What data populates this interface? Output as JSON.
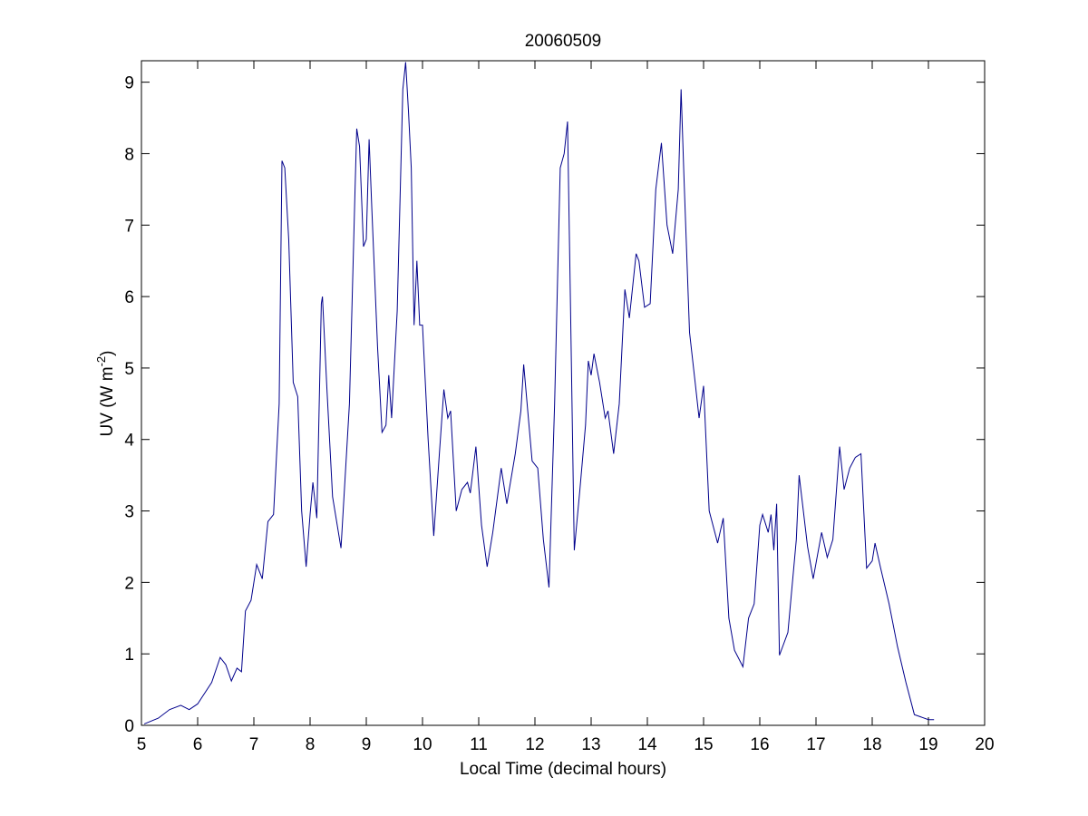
{
  "chart_data": {
    "type": "line",
    "title": "20060509",
    "x_label": "Local Time (decimal hours)",
    "y_label": {
      "text": "UV (W m",
      "superscript": "-2",
      "suffix": ")"
    },
    "xlim": [
      5,
      20
    ],
    "ylim": [
      0,
      9.3
    ],
    "xticks": [
      5,
      6,
      7,
      8,
      9,
      10,
      11,
      12,
      13,
      14,
      15,
      16,
      17,
      18,
      19,
      20
    ],
    "yticks": [
      0,
      1,
      2,
      3,
      4,
      5,
      6,
      7,
      8,
      9
    ],
    "grid": false,
    "x": [
      5.05,
      5.3,
      5.5,
      5.7,
      5.85,
      6.0,
      6.1,
      6.25,
      6.4,
      6.5,
      6.6,
      6.7,
      6.78,
      6.85,
      6.95,
      7.05,
      7.15,
      7.25,
      7.35,
      7.45,
      7.5,
      7.55,
      7.62,
      7.7,
      7.78,
      7.85,
      7.93,
      8.0,
      8.05,
      8.12,
      8.2,
      8.22,
      8.3,
      8.4,
      8.55,
      8.7,
      8.8,
      8.83,
      8.88,
      8.95,
      9.0,
      9.05,
      9.1,
      9.2,
      9.28,
      9.35,
      9.4,
      9.45,
      9.55,
      9.65,
      9.7,
      9.75,
      9.8,
      9.85,
      9.9,
      9.95,
      10.0,
      10.1,
      10.2,
      10.3,
      10.38,
      10.45,
      10.5,
      10.6,
      10.7,
      10.8,
      10.85,
      10.95,
      11.05,
      11.15,
      11.25,
      11.4,
      11.5,
      11.65,
      11.75,
      11.8,
      11.95,
      12.05,
      12.15,
      12.25,
      12.35,
      12.45,
      12.52,
      12.58,
      12.63,
      12.7,
      12.8,
      12.9,
      12.95,
      13.0,
      13.05,
      13.15,
      13.25,
      13.3,
      13.4,
      13.5,
      13.6,
      13.68,
      13.8,
      13.85,
      13.95,
      14.05,
      14.15,
      14.25,
      14.35,
      14.45,
      14.55,
      14.6,
      14.65,
      14.75,
      14.85,
      14.92,
      15.0,
      15.1,
      15.25,
      15.35,
      15.45,
      15.55,
      15.7,
      15.8,
      15.9,
      16.0,
      16.05,
      16.15,
      16.2,
      16.25,
      16.3,
      16.35,
      16.5,
      16.65,
      16.7,
      16.85,
      16.95,
      17.1,
      17.2,
      17.3,
      17.42,
      17.5,
      17.6,
      17.7,
      17.8,
      17.9,
      18.0,
      18.05,
      18.15,
      18.3,
      18.45,
      18.6,
      18.75,
      19.0,
      19.1
    ],
    "series": [
      {
        "color": "#00008b",
        "values": [
          0.02,
          0.1,
          0.22,
          0.28,
          0.22,
          0.3,
          0.42,
          0.6,
          0.95,
          0.85,
          0.62,
          0.8,
          0.75,
          1.6,
          1.75,
          2.25,
          2.05,
          2.85,
          2.95,
          4.5,
          7.9,
          7.8,
          6.8,
          4.8,
          4.6,
          3.0,
          2.22,
          2.95,
          3.4,
          2.9,
          5.9,
          6.0,
          4.7,
          3.2,
          2.48,
          4.5,
          7.5,
          8.35,
          8.1,
          6.7,
          6.8,
          8.2,
          7.2,
          5.3,
          4.1,
          4.2,
          4.9,
          4.3,
          5.8,
          8.9,
          9.28,
          8.6,
          7.8,
          5.6,
          6.5,
          5.6,
          5.6,
          4.0,
          2.65,
          3.8,
          4.7,
          4.3,
          4.4,
          3.0,
          3.3,
          3.4,
          3.25,
          3.9,
          2.8,
          2.22,
          2.7,
          3.6,
          3.1,
          3.8,
          4.4,
          5.05,
          3.7,
          3.6,
          2.6,
          1.93,
          4.5,
          7.8,
          8.0,
          8.45,
          6.0,
          2.45,
          3.3,
          4.2,
          5.1,
          4.9,
          5.2,
          4.8,
          4.3,
          4.4,
          3.8,
          4.5,
          6.1,
          5.7,
          6.6,
          6.5,
          5.85,
          5.9,
          7.5,
          8.15,
          7.0,
          6.6,
          7.5,
          8.9,
          7.7,
          5.5,
          4.8,
          4.3,
          4.75,
          3.0,
          2.55,
          2.9,
          1.5,
          1.05,
          0.82,
          1.5,
          1.7,
          2.8,
          2.95,
          2.7,
          2.95,
          2.45,
          3.1,
          0.98,
          1.3,
          2.6,
          3.5,
          2.5,
          2.05,
          2.7,
          2.35,
          2.6,
          3.9,
          3.3,
          3.6,
          3.75,
          3.8,
          2.2,
          2.3,
          2.55,
          2.2,
          1.7,
          1.1,
          0.6,
          0.15,
          0.08,
          0.08
        ]
      }
    ]
  }
}
